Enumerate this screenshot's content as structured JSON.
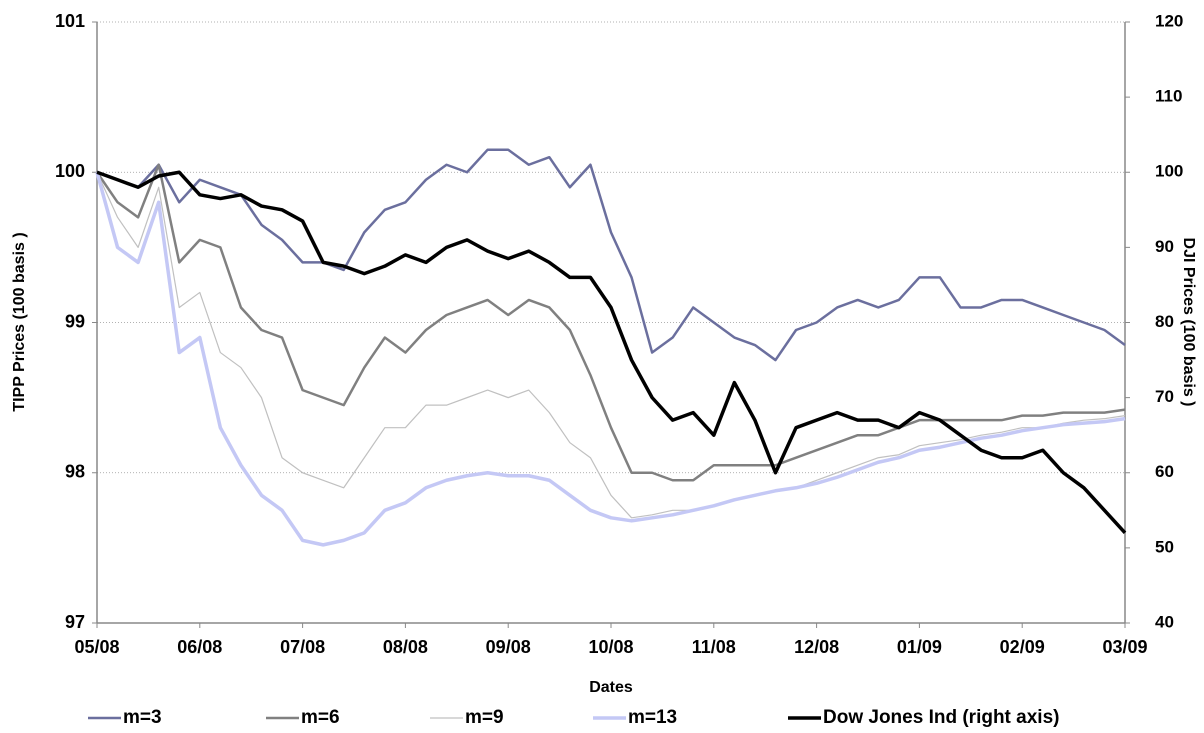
{
  "chart_data": {
    "type": "line",
    "xlabel": "Dates",
    "ylabel": "TIPP Prices  (100 basis )",
    "y2label": "DJI Prices  (100 basis )",
    "categories": [
      "05/08",
      null,
      null,
      null,
      null,
      "06/08",
      null,
      null,
      null,
      null,
      "07/08",
      null,
      null,
      null,
      null,
      "08/08",
      null,
      null,
      null,
      null,
      "09/08",
      null,
      null,
      null,
      null,
      "10/08",
      null,
      null,
      null,
      null,
      "11/08",
      null,
      null,
      null,
      null,
      "12/08",
      null,
      null,
      null,
      null,
      "01/09",
      null,
      null,
      null,
      null,
      "02/09",
      null,
      null,
      null,
      null,
      "03/09"
    ],
    "ylim": [
      97,
      101
    ],
    "yticks": [
      97,
      98,
      99,
      100,
      101
    ],
    "y2lim": [
      40,
      120
    ],
    "y2ticks": [
      40,
      50,
      60,
      70,
      80,
      90,
      100,
      110,
      120
    ],
    "y2tick_color": "#1f1f7a",
    "grid": true,
    "legend": "bottom",
    "series": [
      {
        "name": "m=3",
        "color": "#6b6f9e",
        "width": 2.5,
        "values": [
          100.0,
          99.95,
          99.9,
          100.05,
          99.8,
          99.95,
          99.9,
          99.85,
          99.65,
          99.55,
          99.4,
          99.4,
          99.35,
          99.6,
          99.75,
          99.8,
          99.95,
          100.05,
          100.0,
          100.15,
          100.15,
          100.05,
          100.1,
          99.9,
          100.05,
          99.6,
          99.3,
          98.8,
          98.9,
          99.1,
          99.0,
          98.9,
          98.85,
          98.75,
          98.95,
          99.0,
          99.1,
          99.15,
          99.1,
          99.15,
          99.3,
          99.3,
          99.1,
          99.1,
          99.15,
          99.15,
          99.1,
          99.05,
          99.0,
          98.95,
          98.85
        ]
      },
      {
        "name": "m=6",
        "color": "#808080",
        "width": 2.5,
        "values": [
          100.0,
          99.8,
          99.7,
          100.05,
          99.4,
          99.55,
          99.5,
          99.1,
          98.95,
          98.9,
          98.55,
          98.5,
          98.45,
          98.7,
          98.9,
          98.8,
          98.95,
          99.05,
          99.1,
          99.15,
          99.05,
          99.15,
          99.1,
          98.95,
          98.65,
          98.3,
          98.0,
          98.0,
          97.95,
          97.95,
          98.05,
          98.05,
          98.05,
          98.05,
          98.1,
          98.15,
          98.2,
          98.25,
          98.25,
          98.3,
          98.35,
          98.35,
          98.35,
          98.35,
          98.35,
          98.38,
          98.38,
          98.4,
          98.4,
          98.4,
          98.42
        ]
      },
      {
        "name": "m=9",
        "color": "#c0c0c0",
        "width": 1.2,
        "values": [
          100.0,
          99.7,
          99.5,
          99.9,
          99.1,
          99.2,
          98.8,
          98.7,
          98.5,
          98.1,
          98.0,
          97.95,
          97.9,
          98.1,
          98.3,
          98.3,
          98.45,
          98.45,
          98.5,
          98.55,
          98.5,
          98.55,
          98.4,
          98.2,
          98.1,
          97.85,
          97.7,
          97.72,
          97.75,
          97.75,
          97.78,
          97.82,
          97.85,
          97.88,
          97.9,
          97.95,
          98.0,
          98.05,
          98.1,
          98.12,
          98.18,
          98.2,
          98.22,
          98.25,
          98.27,
          98.3,
          98.3,
          98.33,
          98.35,
          98.36,
          98.38
        ]
      },
      {
        "name": "m=13",
        "color": "#c4c8f5",
        "width": 3.5,
        "values": [
          100.0,
          99.5,
          99.4,
          99.8,
          98.8,
          98.9,
          98.3,
          98.05,
          97.85,
          97.75,
          97.55,
          97.52,
          97.55,
          97.6,
          97.75,
          97.8,
          97.9,
          97.95,
          97.98,
          98.0,
          97.98,
          97.98,
          97.95,
          97.85,
          97.75,
          97.7,
          97.68,
          97.7,
          97.72,
          97.75,
          97.78,
          97.82,
          97.85,
          97.88,
          97.9,
          97.93,
          97.97,
          98.02,
          98.07,
          98.1,
          98.15,
          98.17,
          98.2,
          98.23,
          98.25,
          98.28,
          98.3,
          98.32,
          98.33,
          98.34,
          98.36
        ]
      },
      {
        "name": "Dow Jones Ind (right axis)",
        "color": "#000000",
        "width": 3.5,
        "axis": "y2",
        "values": [
          100,
          99,
          98,
          99.5,
          100,
          97,
          96.5,
          97,
          95.5,
          95,
          93.5,
          88,
          87.5,
          86.5,
          87.5,
          89,
          88,
          90,
          91,
          89.5,
          88.5,
          89.5,
          88,
          86,
          86,
          82,
          75,
          70,
          67,
          68,
          65,
          72,
          67,
          60,
          66,
          67,
          68,
          67,
          67,
          66,
          68,
          67,
          65,
          63,
          62,
          62,
          63,
          60,
          58,
          55,
          52
        ]
      }
    ]
  }
}
